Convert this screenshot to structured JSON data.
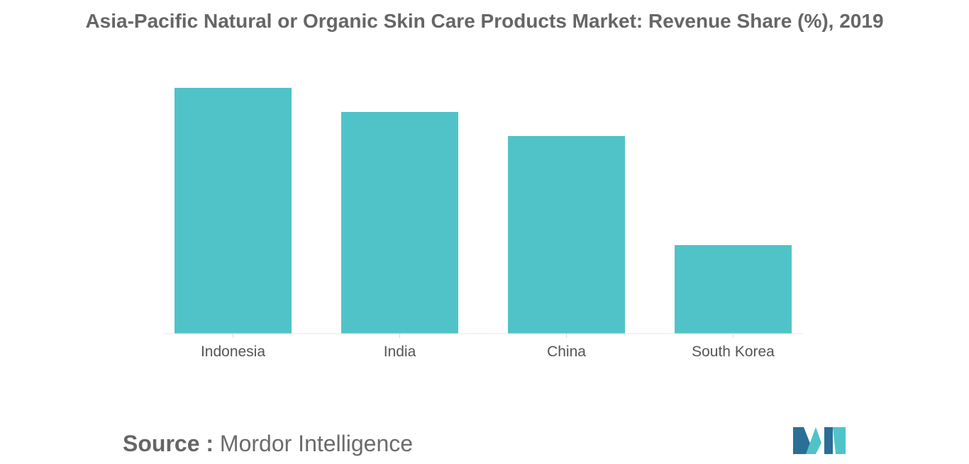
{
  "header": {
    "title": "Asia-Pacific Natural or Organic Skin Care Products Market: Revenue Share (%), 2019"
  },
  "chart_data": {
    "type": "bar",
    "categories": [
      "Indonesia",
      "India",
      "China",
      "South Korea"
    ],
    "values": [
      34.7,
      31.3,
      27.9,
      12.5
    ],
    "ylim": [
      0,
      40
    ],
    "grid": false,
    "legend": "none",
    "bar_color": "#50c3c9"
  },
  "footer": {
    "source_label": "Source :",
    "source_name": "Mordor Intelligence"
  },
  "logo": {
    "icon": "mordor-intelligence-logo-icon",
    "colors": [
      "#2a6f97",
      "#50c3c9"
    ]
  }
}
